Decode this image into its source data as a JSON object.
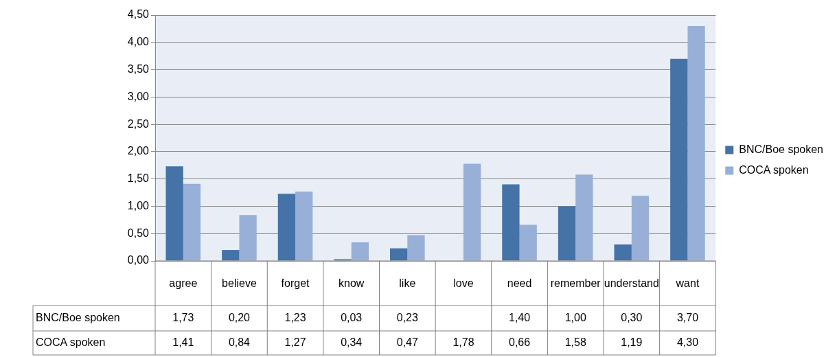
{
  "chart_data": {
    "type": "bar",
    "categories": [
      "agree",
      "believe",
      "forget",
      "know",
      "like",
      "love",
      "need",
      "remember",
      "understand",
      "want"
    ],
    "series": [
      {
        "name": "BNC/Boe spoken",
        "color": "#4572a7",
        "values": [
          1.73,
          0.2,
          1.23,
          0.03,
          0.23,
          null,
          1.4,
          1.0,
          0.3,
          3.7
        ],
        "value_labels": [
          "1,73",
          "0,20",
          "1,23",
          "0,03",
          "0,23",
          null,
          "1,40",
          "1,00",
          "0,30",
          "3,70"
        ]
      },
      {
        "name": "COCA spoken",
        "color": "#98afd7",
        "values": [
          1.41,
          0.84,
          1.27,
          0.34,
          0.47,
          1.78,
          0.66,
          1.58,
          1.19,
          4.3
        ],
        "value_labels": [
          "1,41",
          "0,84",
          "1,27",
          "0,34",
          "0,47",
          "1,78",
          "0,66",
          "1,58",
          "1,19",
          "4,30"
        ]
      }
    ],
    "ylim": [
      0,
      4.5
    ],
    "yticks": [
      {
        "value": 0,
        "label": "0,00"
      },
      {
        "value": 0.5,
        "label": "0,50"
      },
      {
        "value": 1,
        "label": "1,00"
      },
      {
        "value": 1.5,
        "label": "1,50"
      },
      {
        "value": 2,
        "label": "2,00"
      },
      {
        "value": 2.5,
        "label": "2,50"
      },
      {
        "value": 3,
        "label": "3,00"
      },
      {
        "value": 3.5,
        "label": "3,50"
      },
      {
        "value": 4,
        "label": "4,00"
      },
      {
        "value": 4.5,
        "label": "4,50"
      }
    ],
    "grid": "y",
    "legend": "right"
  }
}
